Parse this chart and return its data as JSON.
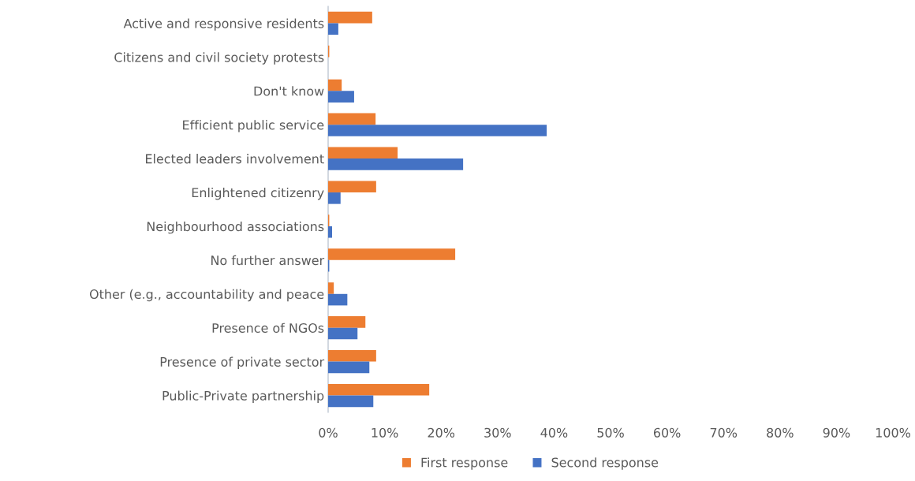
{
  "chart_data": {
    "type": "bar",
    "orientation": "horizontal",
    "categories": [
      "Active and responsive residents",
      "Citizens and civil society protests",
      "Don't know",
      "Efficient public service",
      "Elected leaders involvement",
      "Enlightened citizenry",
      "Neighbourhood associations",
      "No further answer",
      "Other (e.g., accountability and peace",
      "Presence of NGOs",
      "Presence of private sector",
      "Public-Private partnership"
    ],
    "series": [
      {
        "name": "First response",
        "color": "#ed7d31",
        "values": [
          7.8,
          0.2,
          2.4,
          8.4,
          12.3,
          8.5,
          0.2,
          22.5,
          1.0,
          6.6,
          8.5,
          17.9
        ]
      },
      {
        "name": "Second response",
        "color": "#4472c4",
        "values": [
          1.8,
          0,
          4.6,
          38.7,
          23.9,
          2.2,
          0.7,
          0.2,
          3.4,
          5.2,
          7.3,
          8.0
        ]
      }
    ],
    "xlim": [
      0,
      100
    ],
    "xticks": [
      {
        "value": 0,
        "label": "0%"
      },
      {
        "value": 10,
        "label": "10%"
      },
      {
        "value": 20,
        "label": "20%"
      },
      {
        "value": 30,
        "label": "30%"
      },
      {
        "value": 40,
        "label": "40%"
      },
      {
        "value": 50,
        "label": "50%"
      },
      {
        "value": 60,
        "label": "60%"
      },
      {
        "value": 70,
        "label": "70%"
      },
      {
        "value": 80,
        "label": "80%"
      },
      {
        "value": 90,
        "label": "90%"
      },
      {
        "value": 100,
        "label": "100%"
      }
    ],
    "grid": false,
    "legend": "bottom"
  }
}
